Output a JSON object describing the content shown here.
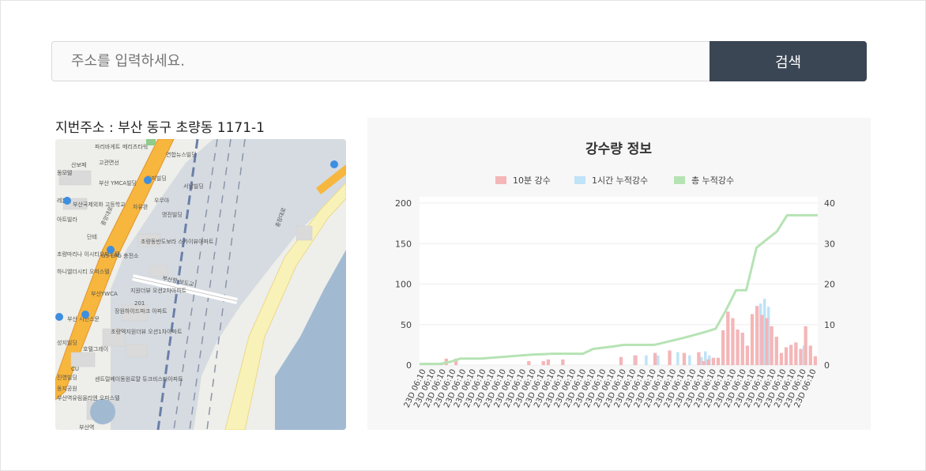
{
  "search": {
    "placeholder": "주소를 입력하세요.",
    "value": "",
    "button_label": "검색"
  },
  "address": {
    "label": "지번주소 : 부산 동구 초량동 1171-1"
  },
  "map": {
    "labels": {
      "paris": "파리바게트",
      "mercity": "메리츠타워",
      "yonhap": "연합뉴스빌딩",
      "sanbopae": "산보페",
      "gogwan": "고관면선",
      "bemot": "동모텔",
      "ywca_bld": "부산\nYMCA빌딩",
      "amirbld": "아미빌딩",
      "seonambld": "서남빌딩",
      "reisun": "레븐",
      "intlhs": "부산국제외화\n고등학교",
      "jayuwan": "자유완",
      "uuria": "우무아",
      "myeongjin": "명진빌딩",
      "ttbld": "아트빌라",
      "dante": "단테",
      "gslpg": "GS-LPG\n충전소",
      "chorang_ocean": "초량동반도보라\n스카이뷰아파트",
      "maritime": "초량마리나\n이시티오피스텔",
      "hanil": "하니엘더시티\n오피스텔",
      "ywca": "부산YWCA",
      "jiwon": "지원더뷰\n오션2차아파트",
      "busanarea": "부산\n시민스문",
      "janghun": "장원하이드파크\n아파트",
      "chorang_view": "초량엑지원더뷰\n오션1차아파트",
      "seongji": "성지빌딩",
      "hotel": "호텔그레이",
      "cu": "CU",
      "jeil": "진영빌딩",
      "gongwon": "동지공원",
      "centum": "센트럴베이동원로얄\n듀크비스타아파트",
      "busan_station": "부산역유림올리엔\n오피스텔",
      "road_station": "충장대로",
      "chung": "중앙대로",
      "tower": "부산역",
      "bridge": "부산항 보도교",
      "num201": "201"
    }
  },
  "chart_data": {
    "type": "bar+line",
    "title": "강수량 정보",
    "legend_placement": "top",
    "series": [
      {
        "name": "10분 강수",
        "type": "bar",
        "axis": "left",
        "color": "#f4b6b8"
      },
      {
        "name": "1시간 누적강수",
        "type": "bar",
        "axis": "left",
        "color": "#bfe3f7"
      },
      {
        "name": "총 누적강수",
        "type": "line",
        "axis": "right",
        "color": "#b6e3b4"
      }
    ],
    "y_left": {
      "min": 0,
      "max": 200,
      "ticks": [
        "0",
        "50",
        "100",
        "150",
        "200"
      ]
    },
    "y_right": {
      "min": 0,
      "max": 40,
      "ticks": [
        "0",
        "10",
        "20",
        "30",
        "40"
      ]
    },
    "x_tick_label": "23D 06:10",
    "x_tick_count": 40,
    "bars_red": [
      0,
      3,
      0,
      0,
      2,
      8,
      0,
      8,
      0,
      0,
      0,
      0,
      0,
      0,
      0,
      0,
      0,
      0,
      0,
      0,
      0,
      0,
      5,
      0,
      0,
      5,
      7,
      0,
      0,
      7,
      0,
      0,
      0,
      0,
      0,
      0,
      0,
      0,
      0,
      0,
      0,
      10,
      0,
      0,
      12,
      0,
      0,
      0,
      15,
      0,
      0,
      18,
      0,
      0,
      15,
      0,
      0,
      16,
      5,
      7,
      9,
      9,
      43,
      66,
      58,
      44,
      40,
      24,
      63,
      73,
      62,
      58,
      48,
      35,
      15,
      22,
      25,
      28,
      20,
      48,
      24,
      11
    ],
    "bars_blue": [
      0,
      0,
      0,
      0,
      0,
      0,
      0,
      0,
      0,
      0,
      0,
      0,
      0,
      0,
      0,
      0,
      0,
      0,
      0,
      0,
      0,
      0,
      0,
      0,
      0,
      0,
      0,
      0,
      0,
      0,
      0,
      0,
      0,
      0,
      0,
      0,
      0,
      0,
      0,
      0,
      0,
      0,
      0,
      0,
      0,
      0,
      0,
      0,
      0,
      0,
      0,
      0,
      0,
      0,
      12,
      0,
      0,
      12,
      0,
      0,
      12,
      0,
      0,
      10,
      0,
      16,
      0,
      0,
      12,
      0,
      0,
      10,
      17,
      12,
      0,
      0,
      0,
      0,
      0,
      36,
      0,
      0,
      0,
      0,
      0,
      0,
      76,
      82,
      72,
      0,
      0,
      0,
      0,
      0,
      0,
      0,
      0,
      24,
      0,
      0,
      0
    ],
    "line_values": [
      0.3,
      0.3,
      0.3,
      0.8,
      1.6,
      1.6,
      1.6,
      1.8,
      2.0,
      2.2,
      2.4,
      2.6,
      2.7,
      2.8,
      2.8,
      2.8,
      2.8,
      4.0,
      4.3,
      4.6,
      5.0,
      5.0,
      5.0,
      5.0,
      5.6,
      6.2,
      6.8,
      7.5,
      8.2,
      9.0,
      13.5,
      18.5,
      18.5,
      29.0,
      31.0,
      33.0,
      37.0,
      37.0,
      37.0,
      37.0
    ]
  }
}
